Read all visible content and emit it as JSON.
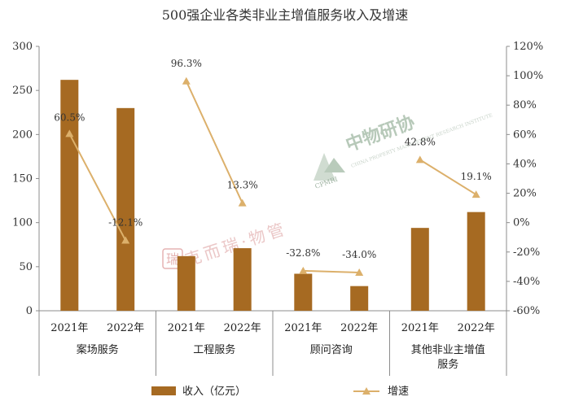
{
  "chart_data": {
    "type": "bar+line",
    "title": "500强企业各类非业主增值服务收入及增速",
    "groups": [
      "案场服务",
      "工程服务",
      "顾问咨询",
      "其他非业主增值服务"
    ],
    "categories": [
      "2021年",
      "2022年",
      "2021年",
      "2022年",
      "2021年",
      "2022年",
      "2021年",
      "2022年"
    ],
    "series": [
      {
        "name": "收入（亿元）",
        "type": "bar",
        "axis": "left",
        "color": "#a66a22",
        "values": [
          262,
          230,
          62,
          71,
          42,
          28,
          94,
          112
        ]
      },
      {
        "name": "增速",
        "type": "line",
        "axis": "right",
        "color": "#dcb06b",
        "values": [
          60.5,
          -12.1,
          96.3,
          13.3,
          -32.8,
          -34.0,
          42.8,
          19.1
        ],
        "labels": [
          "60.5%",
          "-12.1%",
          "96.3%",
          "13.3%",
          "-32.8%",
          "-34.0%",
          "42.8%",
          "19.1%"
        ]
      }
    ],
    "ylim_left": [
      0,
      300
    ],
    "yticks_left": [
      "0",
      "50",
      "100",
      "150",
      "200",
      "250",
      "300"
    ],
    "ylim_right": [
      -60,
      120
    ],
    "yticks_right": [
      "-60%",
      "-40%",
      "-20%",
      "0%",
      "20%",
      "40%",
      "60%",
      "80%",
      "100%",
      "120%"
    ],
    "grid": false,
    "legend_position": "bottom"
  },
  "watermarks": {
    "left_text": "克而瑞·物管",
    "left_seal": "瑞",
    "right_text": "中物研协",
    "right_logo": "CPMRI",
    "right_sub": "CHINA PROPERTY MANAGEMENT RESEARCH INSTITUTE"
  }
}
